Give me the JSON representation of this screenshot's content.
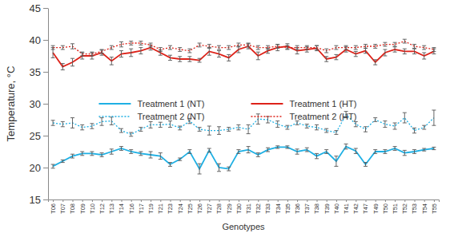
{
  "chart_data": {
    "type": "line",
    "x_label": "Genotypes",
    "y_label": "Temperature, °C",
    "categories": [
      "T06",
      "T07",
      "T08",
      "T09",
      "T10",
      "T12",
      "T13",
      "T14",
      "T16",
      "T17",
      "T19",
      "T21",
      "T23",
      "T24",
      "T25",
      "T26",
      "T27",
      "T28",
      "T29",
      "T30",
      "T31",
      "T32",
      "T33",
      "T34",
      "T35",
      "T36",
      "T37",
      "T38",
      "T39",
      "T40",
      "T41",
      "T42",
      "T47",
      "T49",
      "T50",
      "T51",
      "T52",
      "T53",
      "T54",
      "T55"
    ],
    "ylim": [
      15,
      45
    ],
    "yticks": [
      15,
      20,
      25,
      30,
      35,
      40,
      45
    ],
    "legend": "center",
    "series": [
      {
        "name": "Treatment 1 (NT)",
        "color": "#1fb0e4",
        "line_style": "solid",
        "values": [
          20.2,
          21.0,
          21.8,
          22.2,
          22.2,
          22.0,
          22.5,
          23.0,
          22.5,
          22.2,
          22.0,
          21.8,
          20.5,
          21.3,
          22.5,
          19.8,
          22.7,
          20.0,
          19.8,
          22.5,
          22.8,
          22.0,
          22.8,
          23.2,
          23.2,
          22.5,
          22.8,
          21.8,
          22.5,
          21.0,
          23.3,
          22.6,
          20.5,
          22.5,
          22.5,
          23.0,
          22.3,
          22.5,
          22.8,
          23.0
        ],
        "errors": [
          0.3,
          0.2,
          0.3,
          0.3,
          0.3,
          0.3,
          0.4,
          0.3,
          0.3,
          0.3,
          0.5,
          0.5,
          0.3,
          0.2,
          0.3,
          0.8,
          0.3,
          0.6,
          0.3,
          0.3,
          0.5,
          0.3,
          0.3,
          0.2,
          0.2,
          0.4,
          0.3,
          0.4,
          0.3,
          0.8,
          0.4,
          0.4,
          0.3,
          0.3,
          0.3,
          0.3,
          0.4,
          0.3,
          0.2,
          0.2
        ]
      },
      {
        "name": "Treatment 2 (NT)",
        "color": "#1fb0e4",
        "line_style": "dotted",
        "values": [
          27.0,
          26.8,
          27.0,
          26.3,
          26.5,
          27.2,
          27.3,
          25.8,
          25.2,
          26.0,
          26.7,
          26.7,
          26.8,
          26.2,
          27.3,
          26.0,
          25.8,
          25.8,
          26.0,
          26.3,
          26.0,
          27.6,
          27.5,
          26.8,
          26.3,
          27.0,
          26.5,
          26.3,
          25.8,
          25.5,
          28.3,
          26.8,
          26.0,
          27.5,
          26.8,
          26.5,
          27.8,
          25.8,
          26.3,
          27.8
        ],
        "errors": [
          0.4,
          0.4,
          0.8,
          0.4,
          0.4,
          0.6,
          0.6,
          0.3,
          0.3,
          0.3,
          0.5,
          0.4,
          0.5,
          0.3,
          0.4,
          0.3,
          0.7,
          0.6,
          0.3,
          0.4,
          0.7,
          0.8,
          0.5,
          0.5,
          0.3,
          0.3,
          0.3,
          0.4,
          0.3,
          0.3,
          0.5,
          0.4,
          0.4,
          0.3,
          0.5,
          0.5,
          0.8,
          0.4,
          0.3,
          1.2
        ]
      },
      {
        "name": "Treatment 1 (HT)",
        "color": "#dd2219",
        "line_style": "solid",
        "values": [
          38.0,
          35.8,
          36.5,
          37.5,
          37.5,
          38.0,
          36.7,
          37.8,
          38.0,
          38.3,
          38.8,
          38.0,
          37.2,
          37.0,
          37.0,
          36.8,
          38.2,
          37.8,
          37.2,
          38.5,
          39.0,
          37.5,
          38.3,
          38.8,
          39.0,
          38.3,
          38.5,
          38.7,
          37.0,
          37.3,
          38.5,
          37.8,
          38.3,
          36.5,
          38.0,
          38.5,
          38.2,
          38.2,
          37.5,
          38.2
        ],
        "errors": [
          0.8,
          0.5,
          0.6,
          0.5,
          0.5,
          0.4,
          0.6,
          0.5,
          0.6,
          0.5,
          0.4,
          0.4,
          0.4,
          0.4,
          0.4,
          0.3,
          0.6,
          0.5,
          0.5,
          0.5,
          0.4,
          0.6,
          0.4,
          0.5,
          0.4,
          0.5,
          0.4,
          0.4,
          0.4,
          0.4,
          0.4,
          0.4,
          0.4,
          0.4,
          0.5,
          0.4,
          0.4,
          0.4,
          0.5,
          0.4
        ]
      },
      {
        "name": "Treatment 2 (HT)",
        "color": "#dd2219",
        "line_style": "dotted",
        "values": [
          38.8,
          38.8,
          39.0,
          37.8,
          37.8,
          38.2,
          38.8,
          39.3,
          39.5,
          39.5,
          39.2,
          38.5,
          38.8,
          38.5,
          38.3,
          39.2,
          39.0,
          38.8,
          38.8,
          39.2,
          39.2,
          38.8,
          38.8,
          39.0,
          38.8,
          38.8,
          38.8,
          38.8,
          38.3,
          38.8,
          38.8,
          38.8,
          39.0,
          39.0,
          39.3,
          39.3,
          39.8,
          39.0,
          38.8,
          38.5
        ],
        "errors": [
          0.3,
          0.3,
          0.4,
          0.3,
          0.3,
          0.3,
          0.3,
          0.4,
          0.3,
          0.3,
          0.3,
          0.3,
          0.3,
          0.3,
          0.3,
          0.3,
          0.3,
          0.3,
          0.3,
          0.3,
          0.3,
          0.3,
          0.3,
          0.3,
          0.3,
          0.3,
          0.3,
          0.3,
          0.3,
          0.3,
          0.3,
          0.3,
          0.3,
          0.3,
          0.3,
          0.3,
          0.3,
          0.3,
          0.3,
          0.3
        ]
      }
    ]
  }
}
